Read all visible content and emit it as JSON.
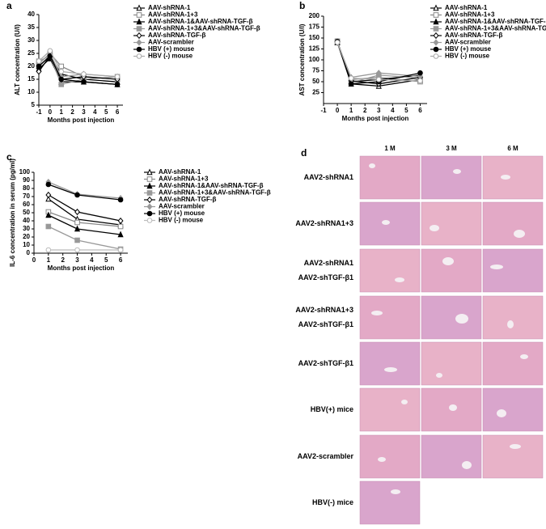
{
  "chart_data": [
    {
      "type": "line",
      "panel": "a",
      "ylabel": "ALT concentration (U/l)",
      "xlabel": "Months post injection",
      "x": [
        -1,
        0,
        1,
        3,
        6
      ],
      "xlim": [
        -1,
        6.5
      ],
      "xticks": [
        -1,
        0,
        1,
        2,
        3,
        4,
        5,
        6
      ],
      "ylim": [
        5,
        40
      ],
      "yticks": [
        5,
        10,
        15,
        20,
        25,
        30,
        35,
        40
      ],
      "series": [
        {
          "name": "AAV-shRNA-1",
          "color": "#000000",
          "marker": "triangle-open",
          "values": [
            20,
            24,
            17,
            15,
            14
          ]
        },
        {
          "name": "AAV-shRNA-1+3",
          "color": "#888888",
          "marker": "square-open",
          "values": [
            21,
            25,
            20,
            16,
            15
          ]
        },
        {
          "name": "AAV-shRNA-1&AAV-shRNA-TGF-β",
          "color": "#000000",
          "marker": "triangle",
          "values": [
            19,
            23,
            14,
            14,
            13
          ]
        },
        {
          "name": "AAV-shRNA-1+3&AAV-shRNA-TGF-β",
          "color": "#999999",
          "marker": "square",
          "values": [
            22,
            24,
            13,
            15,
            16
          ]
        },
        {
          "name": "AAV-shRNA-TGF-β",
          "color": "#000000",
          "marker": "diamond-open",
          "values": [
            18,
            24,
            15,
            16,
            15
          ]
        },
        {
          "name": "AAV-scrambler",
          "color": "#999999",
          "marker": "diamond",
          "values": [
            21,
            25,
            16,
            17,
            16
          ]
        },
        {
          "name": "HBV (+) mouse",
          "color": "#000000",
          "marker": "circle",
          "values": [
            20,
            24,
            15,
            14,
            13
          ]
        },
        {
          "name": "HBV (-) mouse",
          "color": "#aaaaaa",
          "marker": "circle-open",
          "values": [
            22,
            26,
            18,
            17,
            16
          ]
        }
      ]
    },
    {
      "type": "line",
      "panel": "b",
      "ylabel": "AST concentration (U/l)",
      "xlabel": "Months post injection",
      "x": [
        0,
        1,
        3,
        6
      ],
      "xlim": [
        -1,
        6.5
      ],
      "xticks": [
        -1,
        0,
        1,
        2,
        3,
        4,
        5,
        6
      ],
      "ylim": [
        0,
        200
      ],
      "yticks": [
        25,
        50,
        75,
        100,
        125,
        150,
        175,
        200
      ],
      "series": [
        {
          "name": "AAV-shRNA-1",
          "color": "#000000",
          "marker": "triangle-open",
          "values": [
            140,
            45,
            40,
            55
          ]
        },
        {
          "name": "AAV-shRNA-1+3",
          "color": "#888888",
          "marker": "square-open",
          "values": [
            142,
            55,
            60,
            50
          ]
        },
        {
          "name": "AAV-shRNA-1&AAV-shRNA-TGF-β",
          "color": "#000000",
          "marker": "triangle",
          "values": [
            140,
            50,
            55,
            65
          ]
        },
        {
          "name": "AAV-shRNA-1+3&AAV-shRNA-TGF-β",
          "color": "#999999",
          "marker": "square",
          "values": [
            143,
            48,
            65,
            58
          ]
        },
        {
          "name": "AAV-shRNA-TGF-β",
          "color": "#000000",
          "marker": "diamond-open",
          "values": [
            141,
            52,
            45,
            60
          ]
        },
        {
          "name": "AAV-scrambler",
          "color": "#999999",
          "marker": "diamond",
          "values": [
            139,
            60,
            70,
            62
          ]
        },
        {
          "name": "HBV (+) mouse",
          "color": "#000000",
          "marker": "circle",
          "values": [
            142,
            45,
            50,
            70
          ]
        },
        {
          "name": "HBV (-) mouse",
          "color": "#aaaaaa",
          "marker": "circle-open",
          "values": [
            140,
            58,
            55,
            52
          ]
        }
      ]
    },
    {
      "type": "line",
      "panel": "c",
      "ylabel": "IL-6 concentration in serum (pg/ml)",
      "xlabel": "Months post injection",
      "x": [
        1,
        3,
        6
      ],
      "xlim": [
        0,
        6.5
      ],
      "xticks": [
        0,
        1,
        2,
        3,
        4,
        5,
        6
      ],
      "ylim": [
        0,
        100
      ],
      "yticks": [
        0,
        10,
        20,
        30,
        40,
        50,
        60,
        70,
        80,
        90,
        100
      ],
      "series": [
        {
          "name": "AAV-shRNA-1",
          "color": "#000000",
          "marker": "triangle-open",
          "values": [
            67,
            42,
            35
          ]
        },
        {
          "name": "AAV-shRNA-1+3",
          "color": "#888888",
          "marker": "square-open",
          "values": [
            51,
            38,
            33
          ]
        },
        {
          "name": "AAV-shRNA-1&AAV-shRNA-TGF-β",
          "color": "#000000",
          "marker": "triangle",
          "values": [
            47,
            30,
            23
          ]
        },
        {
          "name": "AAV-shRNA-1+3&AAV-shRNA-TGF-β",
          "color": "#999999",
          "marker": "square",
          "values": [
            33,
            16,
            5
          ]
        },
        {
          "name": "AAV-shRNA-TGF-β",
          "color": "#000000",
          "marker": "diamond-open",
          "values": [
            72,
            51,
            40
          ]
        },
        {
          "name": "AAV-scrambler",
          "color": "#999999",
          "marker": "diamond",
          "values": [
            88,
            73,
            68
          ]
        },
        {
          "name": "HBV (+) mouse",
          "color": "#000000",
          "marker": "circle",
          "values": [
            85,
            72,
            66
          ]
        },
        {
          "name": "HBV (-) mouse",
          "color": "#bbbbbb",
          "marker": "circle-open",
          "values": [
            4,
            4,
            4
          ]
        }
      ]
    }
  ],
  "histology": {
    "panel": "d",
    "columns": [
      "1 M",
      "3 M",
      "6 M"
    ],
    "rows": [
      {
        "label": [
          "AAV2-shRNA1"
        ],
        "images": 3
      },
      {
        "label": [
          "AAV2-shRNA1+3"
        ],
        "images": 3
      },
      {
        "label": [
          "AAV2-shRNA1",
          "AAV2-shTGF-β1"
        ],
        "images": 3
      },
      {
        "label": [
          "AAV2-shRNA1+3",
          "AAV2-shTGF-β1"
        ],
        "images": 3
      },
      {
        "label": [
          "AAV2-shTGF-β1"
        ],
        "images": 3
      },
      {
        "label": [
          "HBV(+) mice"
        ],
        "images": 3
      },
      {
        "label": [
          "AAV2-scrambler"
        ],
        "images": 3
      },
      {
        "label": [
          "HBV(-) mice"
        ],
        "images": 1
      }
    ]
  }
}
